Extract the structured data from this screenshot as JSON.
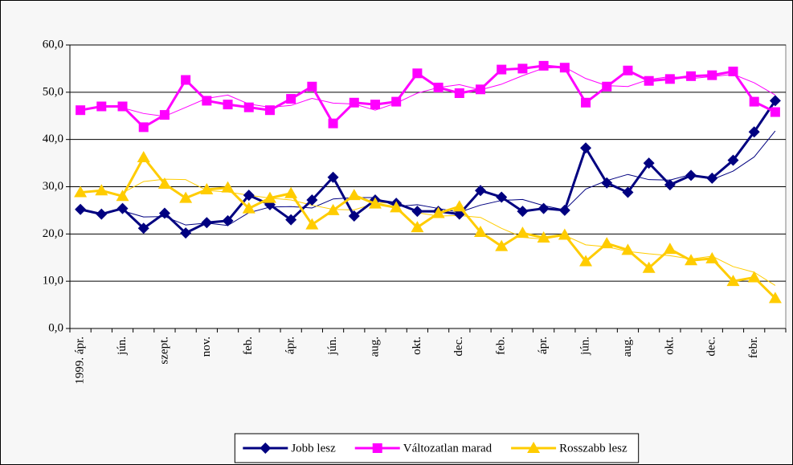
{
  "chart_data": {
    "type": "line",
    "categories": [
      "1999. ápr.",
      null,
      "jún.",
      null,
      "szept.",
      null,
      "nov.",
      null,
      "feb.",
      null,
      "ápr.",
      null,
      "jún.",
      null,
      "aug.",
      null,
      "okt.",
      null,
      "dec.",
      null,
      "feb.",
      null,
      "ápr.",
      null,
      "jún.",
      null,
      "aug.",
      null,
      "okt.",
      null,
      "dec.",
      null,
      "febr.",
      null
    ],
    "ylim": [
      0,
      60
    ],
    "yticks": [
      {
        "value": 0,
        "label": "0,0"
      },
      {
        "value": 10,
        "label": "10,0"
      },
      {
        "value": 20,
        "label": "20,0"
      },
      {
        "value": 30,
        "label": "30,0"
      },
      {
        "value": 40,
        "label": "40,0"
      },
      {
        "value": 50,
        "label": "50,0"
      },
      {
        "value": 60,
        "label": "60,0"
      }
    ],
    "grid": true,
    "legend": "bottom",
    "series": [
      {
        "name": "Jobb lesz",
        "color": "#000080",
        "marker": "diamond",
        "values": [
          25.2,
          24.2,
          25.4,
          21.2,
          24.4,
          20.2,
          22.4,
          22.8,
          28.2,
          26.2,
          23.0,
          27.2,
          32.0,
          23.8,
          27.2,
          26.5,
          24.8,
          24.8,
          24.2,
          29.2,
          27.8,
          24.8,
          25.4,
          25.0,
          38.2,
          30.8,
          28.8,
          35.0,
          30.4,
          32.4,
          31.8,
          35.6,
          41.6,
          48.2
        ],
        "trend": [
          null,
          null,
          24.9,
          23.6,
          23.7,
          21.9,
          22.3,
          21.8,
          24.5,
          25.7,
          25.8,
          25.5,
          27.4,
          27.7,
          27.7,
          25.8,
          26.2,
          25.4,
          24.6,
          26.1,
          27.1,
          27.3,
          26.0,
          25.1,
          29.5,
          31.3,
          32.6,
          31.5,
          31.4,
          32.6,
          31.5,
          33.3,
          36.3,
          41.8
        ]
      },
      {
        "name": "Változatlan marad",
        "color": "#ff00ff",
        "marker": "square",
        "values": [
          46.2,
          47.0,
          47.0,
          42.6,
          45.2,
          52.6,
          48.2,
          47.4,
          46.8,
          46.2,
          48.6,
          51.2,
          43.4,
          47.8,
          47.4,
          48.0,
          54.0,
          51.0,
          49.8,
          50.6,
          54.8,
          55.0,
          55.6,
          55.2,
          47.8,
          51.2,
          54.6,
          52.4,
          52.8,
          53.4,
          53.6,
          54.4,
          48.0,
          45.8
        ],
        "trend": [
          null,
          null,
          46.7,
          45.5,
          44.9,
          46.8,
          48.7,
          49.4,
          47.5,
          46.8,
          47.2,
          48.7,
          47.7,
          47.5,
          46.2,
          47.7,
          49.8,
          51.0,
          51.6,
          50.5,
          51.7,
          53.5,
          55.1,
          55.3,
          52.9,
          51.4,
          51.2,
          52.7,
          53.3,
          52.9,
          53.3,
          53.8,
          52.0,
          49.4
        ]
      },
      {
        "name": "Rosszabb lesz",
        "color": "#ffcc00",
        "marker": "triangle",
        "values": [
          28.8,
          29.2,
          28.0,
          36.2,
          30.6,
          27.6,
          29.4,
          29.8,
          25.4,
          27.6,
          28.6,
          22.0,
          25.0,
          28.2,
          26.4,
          25.6,
          21.4,
          24.4,
          25.8,
          20.4,
          17.4,
          20.2,
          19.2,
          19.8,
          14.2,
          18.0,
          16.6,
          12.8,
          16.8,
          14.4,
          14.8,
          10.0,
          10.8,
          6.4
        ],
        "trend": [
          null,
          null,
          28.7,
          31.1,
          31.6,
          31.5,
          29.2,
          28.9,
          28.2,
          27.6,
          27.2,
          26.1,
          25.2,
          25.1,
          26.5,
          26.7,
          24.5,
          23.8,
          23.9,
          23.5,
          21.2,
          19.3,
          18.9,
          19.7,
          17.7,
          17.3,
          16.3,
          15.8,
          15.4,
          14.7,
          15.3,
          13.1,
          11.9,
          9.1
        ]
      }
    ]
  }
}
